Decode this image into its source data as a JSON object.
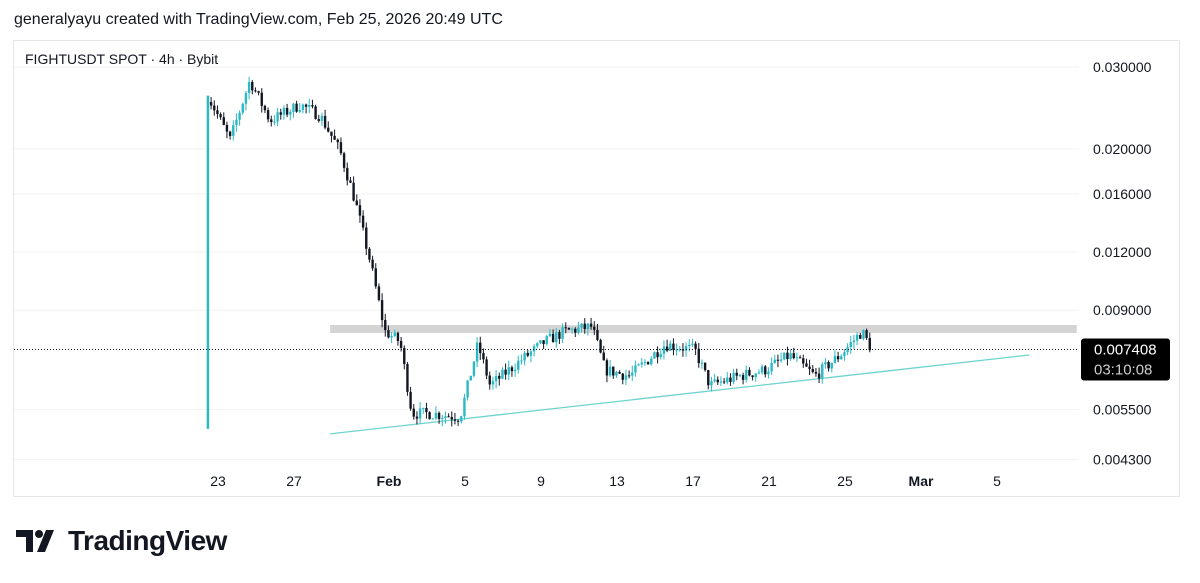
{
  "header": "generalyayu created with TradingView.com, Feb 25, 2026 20:49 UTC",
  "symbol_label": "FIGHTUSDT SPOT · 4h · Bybit",
  "brand": "TradingView",
  "colors": {
    "up": "#2cb9c5",
    "down": "#131722",
    "resistance": "#d4d4d4",
    "support": "#6dd3cf"
  },
  "chart_data": {
    "type": "candlestick",
    "scale": "log",
    "ylim": [
      0.0043,
      0.0305
    ],
    "y_ticks": [
      "0.030000",
      "0.020000",
      "0.016000",
      "0.012000",
      "0.009000",
      "0.005500",
      "0.004300"
    ],
    "y_tick_values": [
      0.03,
      0.02,
      0.016,
      0.012,
      0.009,
      0.0055,
      0.0043
    ],
    "x_ticks": [
      {
        "label": "23",
        "day": 0
      },
      {
        "label": "27",
        "day": 4
      },
      {
        "label": "Feb",
        "day": 9
      },
      {
        "label": "5",
        "day": 13
      },
      {
        "label": "9",
        "day": 17
      },
      {
        "label": "13",
        "day": 21
      },
      {
        "label": "17",
        "day": 25
      },
      {
        "label": "21",
        "day": 29
      },
      {
        "label": "25",
        "day": 33
      },
      {
        "label": "Mar",
        "day": 37
      },
      {
        "label": "5",
        "day": 41
      }
    ],
    "price_path_day_price": [
      [
        -0.53,
        0.026
      ],
      [
        -0.16,
        0.0243
      ],
      [
        0.63,
        0.0209
      ],
      [
        1.68,
        0.0281
      ],
      [
        2.74,
        0.023
      ],
      [
        4.32,
        0.0249
      ],
      [
        5.37,
        0.0236
      ],
      [
        6.42,
        0.0198
      ],
      [
        7.21,
        0.0155
      ],
      [
        8.0,
        0.0115
      ],
      [
        8.79,
        0.0081
      ],
      [
        9.58,
        0.0077
      ],
      [
        10.21,
        0.0054
      ],
      [
        11.16,
        0.0054
      ],
      [
        12.74,
        0.0053
      ],
      [
        13.68,
        0.0076
      ],
      [
        14.32,
        0.0062
      ],
      [
        15.89,
        0.007
      ],
      [
        17.21,
        0.0077
      ],
      [
        18.26,
        0.0081
      ],
      [
        19.68,
        0.0083
      ],
      [
        20.37,
        0.0067
      ],
      [
        21.68,
        0.0065
      ],
      [
        23.53,
        0.0076
      ],
      [
        25.1,
        0.0074
      ],
      [
        25.89,
        0.0062
      ],
      [
        27.47,
        0.0065
      ],
      [
        28.79,
        0.0067
      ],
      [
        30.1,
        0.0072
      ],
      [
        31.42,
        0.0065
      ],
      [
        32.74,
        0.0072
      ],
      [
        33.89,
        0.0081
      ],
      [
        34.42,
        0.0074
      ]
    ],
    "first_candle_low": 0.005,
    "resistance": {
      "price": 0.0082,
      "from_day": 5.9,
      "to_day": 45.2
    },
    "support": {
      "from": [
        5.9,
        0.00488
      ],
      "to": [
        42.7,
        0.00721
      ]
    },
    "last_price": "0.007408",
    "last_price_value": 0.007408,
    "countdown": "03:10:08"
  }
}
